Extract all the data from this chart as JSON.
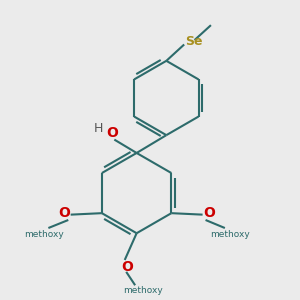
{
  "background_color": "#ebebeb",
  "bond_color": "#2d6b6b",
  "o_color": "#cc0000",
  "se_color": "#a89020",
  "h_color": "#555555",
  "bond_width": 1.5,
  "figsize": [
    3.0,
    3.0
  ],
  "dpi": 100,
  "xlim": [
    0,
    10
  ],
  "ylim": [
    0,
    10
  ]
}
